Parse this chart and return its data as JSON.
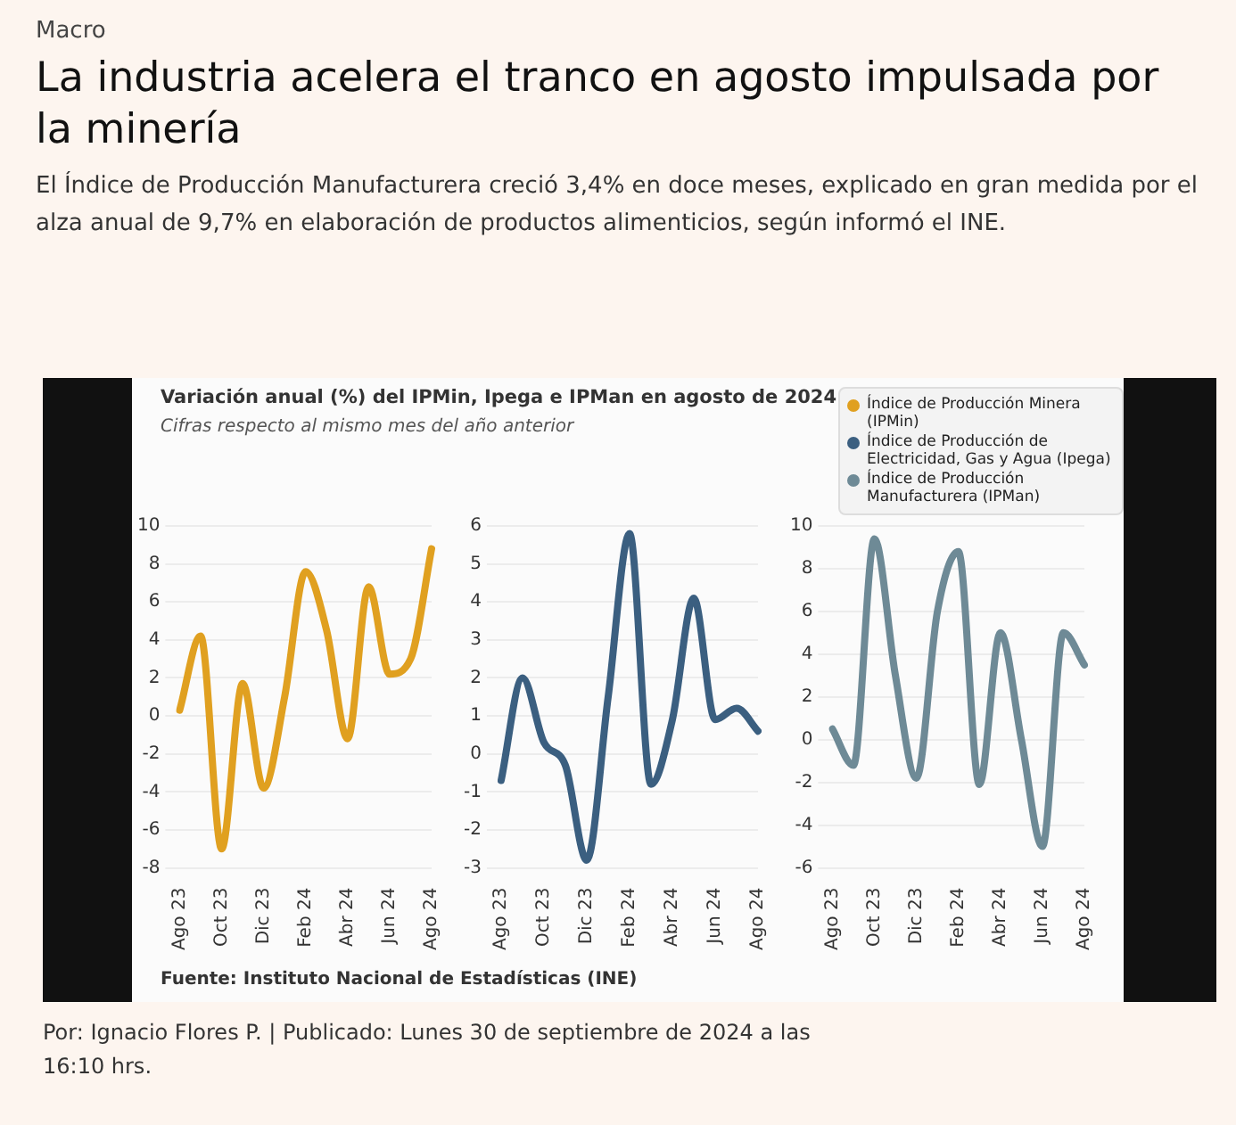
{
  "chart_data": [
    {
      "type": "line",
      "title": "Variación anual (%) del IPMin, Ipega e IPMan en agosto de 2024",
      "subtitle": "Cifras respecto al mismo mes del año anterior",
      "annotations": [
        "Macro",
        "La industria acelera el tranco en agosto impulsada por la minería",
        "El Índice de Producción Manufacturera creció 3,4% en doce meses, explicado en gran medida por el alza anual de 9,7% en elaboración de productos alimenticios, según informó el INE.",
        "Fuente: Instituto Nacional de Estadísticas (INE)",
        "Por: Ignacio Flores P. | Publicado: Lunes 30 de septiembre de 2024 a las 16:10 hrs."
      ],
      "grid": "y",
      "marker": "none",
      "line_style": "solid",
      "categories": [
        "Ago 23",
        null,
        "Oct 23",
        null,
        "Dic 23",
        null,
        "Feb 24",
        null,
        "Abr 24",
        null,
        "Jun 24",
        null,
        "Ago 24"
      ],
      "series": [
        {
          "name": "Índice de Producción Minera (IPMin)",
          "color": "#e0a020",
          "values": [
            0.3,
            4.2,
            -7,
            1.7,
            -3.8,
            1,
            7.6,
            4.5,
            -1.2,
            6.8,
            2.2,
            3,
            8.8
          ]
        }
      ],
      "ylim": [
        -8,
        10
      ],
      "yticks": [
        -8,
        -6,
        -4,
        -2,
        0,
        2,
        4,
        6,
        8,
        10
      ]
    },
    {
      "type": "line",
      "grid": "y",
      "marker": "none",
      "line_style": "solid",
      "categories": [
        "Ago 23",
        null,
        "Oct 23",
        null,
        "Dic 23",
        null,
        "Feb 24",
        null,
        "Abr 24",
        null,
        "Jun 24",
        null,
        "Ago 24"
      ],
      "series": [
        {
          "name": "Índice de Producción de Electricidad, Gas y Agua (Ipega)",
          "color": "#3b5f80",
          "values": [
            -0.7,
            2,
            0.3,
            -0.3,
            -2.8,
            1.5,
            5.8,
            -0.8,
            0.9,
            4.1,
            0.9,
            1.2,
            0.6
          ]
        }
      ],
      "ylim": [
        -3,
        6
      ],
      "yticks": [
        -3,
        -2,
        -1,
        0,
        1,
        2,
        3,
        4,
        5,
        6
      ]
    },
    {
      "type": "line",
      "legend": "top",
      "grid": "y",
      "marker": "none",
      "line_style": "solid",
      "categories": [
        "Ago 23",
        null,
        "Oct 23",
        null,
        "Dic 23",
        null,
        "Feb 24",
        null,
        "Abr 24",
        null,
        "Jun 24",
        null,
        "Ago 24"
      ],
      "series": [
        {
          "name": "Índice de Producción Manufacturera (IPMan)",
          "color": "#6e8a96",
          "values": [
            0.5,
            -1.2,
            9.4,
            3,
            -1.8,
            6,
            8.8,
            -2.1,
            5,
            0,
            -5,
            5,
            3.5
          ]
        }
      ],
      "ylim": [
        -6,
        10
      ],
      "yticks": [
        -6,
        -4,
        -2,
        0,
        2,
        4,
        6,
        8,
        10
      ]
    }
  ]
}
